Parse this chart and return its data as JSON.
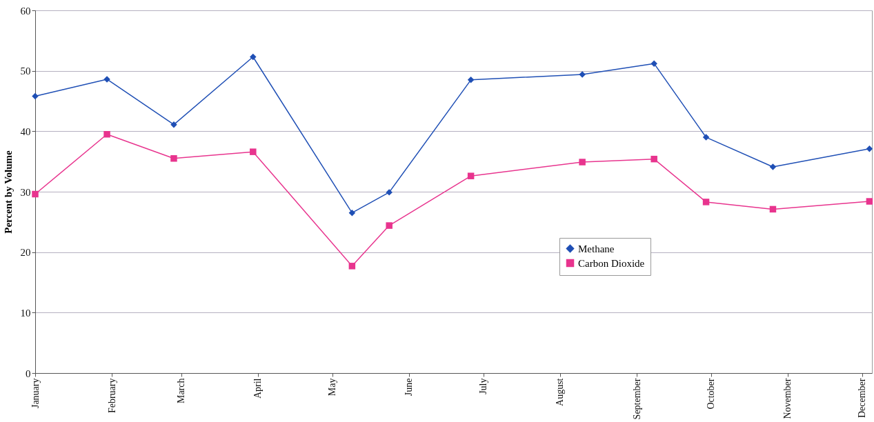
{
  "chart_data": {
    "type": "line",
    "ylabel": "Percent by Volume",
    "x": [
      "--01-01",
      "--01-30",
      "--02-26",
      "--03-30",
      "--05-09",
      "--05-24",
      "--06-26",
      "--08-10",
      "--09-08",
      "--09-29",
      "--10-26",
      "--12-04"
    ],
    "series": [
      {
        "name": "Methane",
        "color": "#1f4fb5",
        "marker": "diamond",
        "values": [
          45.8,
          48.6,
          41.1,
          52.3,
          26.5,
          29.9,
          48.5,
          49.4,
          51.2,
          39.0,
          34.1,
          37.1
        ]
      },
      {
        "name": "Carbon Dioxide",
        "color": "#e8348e",
        "marker": "square",
        "values": [
          29.6,
          39.5,
          35.5,
          36.6,
          17.7,
          24.4,
          32.6,
          34.9,
          35.4,
          28.3,
          27.1,
          28.4
        ]
      }
    ],
    "xlim": [
      "--01-01",
      "--12-05"
    ],
    "xticks": [
      {
        "value": "--01-01",
        "label": "January"
      },
      {
        "value": "--02-01",
        "label": "February"
      },
      {
        "value": "--03-01",
        "label": "March"
      },
      {
        "value": "--04-01",
        "label": "April"
      },
      {
        "value": "--05-01",
        "label": "May"
      },
      {
        "value": "--06-01",
        "label": "June"
      },
      {
        "value": "--07-01",
        "label": "July"
      },
      {
        "value": "--08-01",
        "label": "August"
      },
      {
        "value": "--09-01",
        "label": "September"
      },
      {
        "value": "--10-01",
        "label": "October"
      },
      {
        "value": "--11-01",
        "label": "November"
      },
      {
        "value": "--12-01",
        "label": "December"
      }
    ],
    "ylim": [
      0,
      60
    ],
    "yticks": [
      0,
      10,
      20,
      30,
      40,
      50,
      60
    ],
    "grid": "y",
    "legend": "right",
    "line_style": "solid"
  }
}
